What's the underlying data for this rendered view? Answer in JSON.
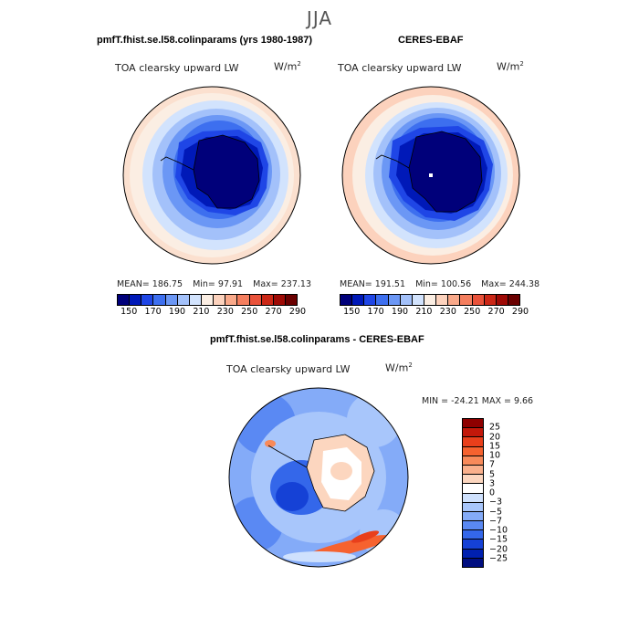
{
  "season": "JJA",
  "panels": {
    "model": {
      "title": "pmfT.fhist.se.l58.colinparams (yrs 1980-1987)",
      "variable": "TOA clearsky upward LW",
      "units": "W/m",
      "units_sup": "2",
      "mean_text": "MEAN= 186.75",
      "min_text": "Min=  97.91",
      "max_text": "Max= 237.13"
    },
    "obs": {
      "title": "CERES-EBAF",
      "variable": "TOA clearsky upward LW",
      "units": "W/m",
      "units_sup": "2",
      "mean_text": "MEAN= 191.51",
      "min_text": "Min= 100.56",
      "max_text": "Max= 244.38"
    },
    "diff": {
      "title": "pmfT.fhist.se.l58.colinparams - CERES-EBAF",
      "variable": "TOA clearsky upward LW",
      "units": "W/m",
      "units_sup": "2",
      "minmax_text": "MIN = -24.21 MAX =   9.66"
    }
  },
  "colorbar_main": {
    "colors": [
      "#00007a",
      "#0019b8",
      "#1f46e6",
      "#3d6fef",
      "#6b97f5",
      "#a3c1fa",
      "#d2e3fd",
      "#fbeee3",
      "#fcd2bd",
      "#f9a98a",
      "#f47e5e",
      "#e9523a",
      "#cb2716",
      "#9e0a05",
      "#6a0000"
    ],
    "tick_labels": [
      "150",
      "170",
      "190",
      "210",
      "230",
      "250",
      "270",
      "290"
    ]
  },
  "colorbar_diff": {
    "colors": [
      "#8e0000",
      "#c3180a",
      "#e93f1b",
      "#f6622f",
      "#f88a5a",
      "#fab08c",
      "#fcd6bf",
      "#ffffff",
      "#cfe1fd",
      "#a8c6fb",
      "#84abf8",
      "#5a89f3",
      "#3467ea",
      "#1541d6",
      "#0020b0",
      "#000e80"
    ],
    "tick_labels": [
      "25",
      "20",
      "15",
      "10",
      "7",
      "5",
      "3",
      "0",
      "−3",
      "−5",
      "−7",
      "−10",
      "−15",
      "−20",
      "−25"
    ]
  }
}
